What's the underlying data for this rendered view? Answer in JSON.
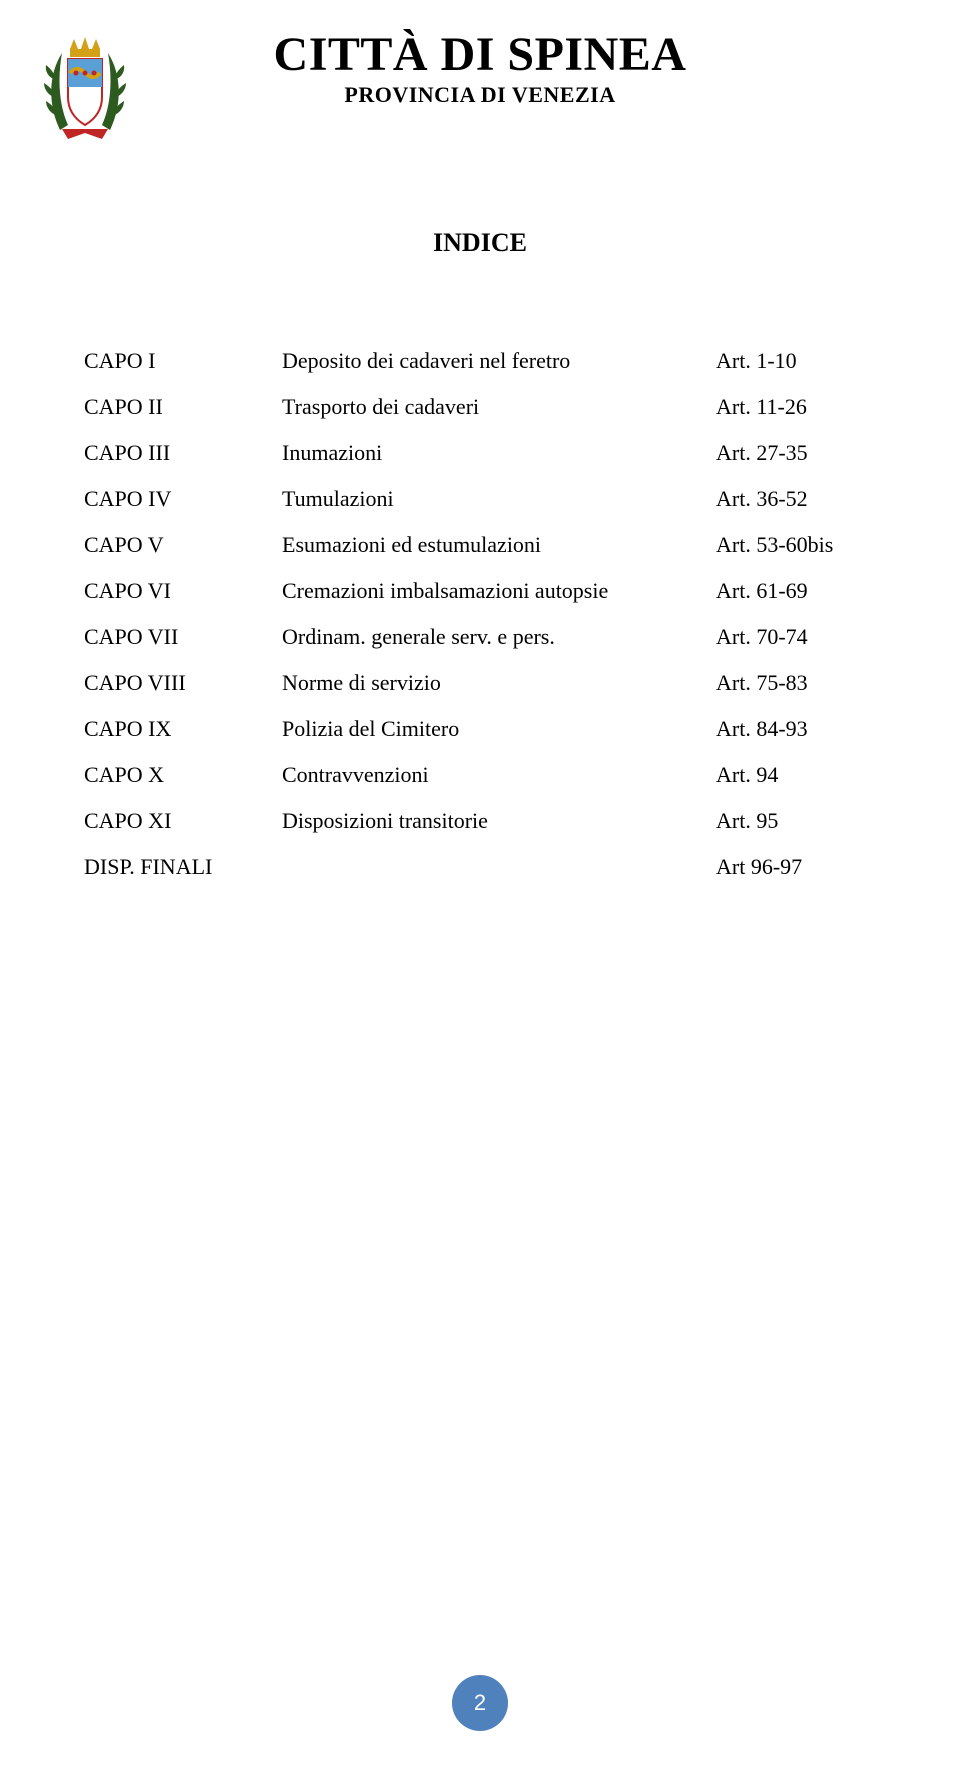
{
  "header": {
    "title": "CITTÀ DI SPINEA",
    "subtitle": "PROVINCIA DI VENEZIA",
    "logo": {
      "wreath_color": "#2d5a1e",
      "ribbon_color": "#c02424",
      "crown_color": "#d4a017",
      "shield_top_color": "#5aa0d6",
      "shield_accent_color": "#d4a017",
      "shield_bottom_color": "#ffffff",
      "shield_border_color": "#c02424"
    }
  },
  "indice_title": "INDICE",
  "toc": [
    {
      "capo": "CAPO I",
      "desc": "Deposito dei cadaveri nel feretro",
      "art": "Art. 1-10"
    },
    {
      "capo": "CAPO II",
      "desc": "Trasporto dei cadaveri",
      "art": "Art. 11-26"
    },
    {
      "capo": "CAPO III",
      "desc": "Inumazioni",
      "art": "Art. 27-35"
    },
    {
      "capo": "CAPO IV",
      "desc": "Tumulazioni",
      "art": "Art. 36-52"
    },
    {
      "capo": "CAPO V",
      "desc": "Esumazioni ed estumulazioni",
      "art": "Art. 53-60bis"
    },
    {
      "capo": "CAPO VI",
      "desc": "Cremazioni imbalsamazioni autopsie",
      "art": "Art. 61-69"
    },
    {
      "capo": "CAPO VII",
      "desc": "Ordinam. generale serv. e pers.",
      "art": "Art. 70-74"
    },
    {
      "capo": "CAPO VIII",
      "desc": "Norme di servizio",
      "art": "Art. 75-83"
    },
    {
      "capo": "CAPO IX",
      "desc": "Polizia del Cimitero",
      "art": "Art. 84-93"
    },
    {
      "capo": "CAPO X",
      "desc": "Contravvenzioni",
      "art": "Art. 94"
    },
    {
      "capo": "CAPO XI",
      "desc": "Disposizioni transitorie",
      "art": "Art. 95"
    },
    {
      "capo": "DISP. FINALI",
      "desc": "",
      "art": "Art 96-97"
    }
  ],
  "page_number": {
    "value": "2",
    "circle_color": "#4f81bd",
    "text_color": "#ffffff"
  },
  "typography": {
    "title_fontsize": 48,
    "subtitle_fontsize": 22,
    "indice_fontsize": 26,
    "toc_fontsize": 22,
    "body_color": "#000000",
    "background_color": "#ffffff",
    "font_family": "Times New Roman"
  }
}
